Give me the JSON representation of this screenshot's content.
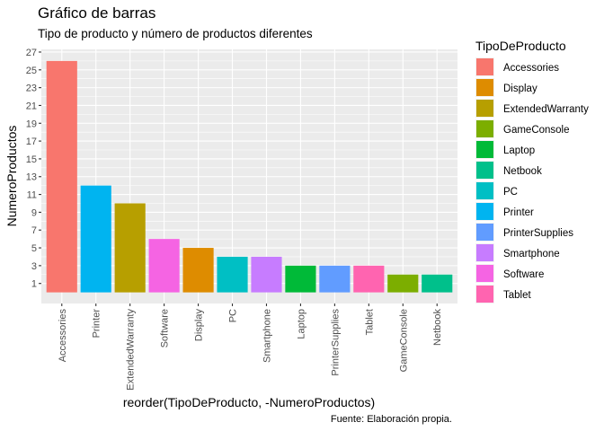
{
  "chart_data": {
    "type": "bar",
    "title": "Gráfico de barras",
    "subtitle": "Tipo de producto y número de productos diferentes",
    "xlabel": "reorder(TipoDeProducto, -NumeroProductos)",
    "ylabel": "NumeroProductos",
    "caption": "Fuente: Elaboración propia.",
    "ylim": [
      -1.25,
      27.3
    ],
    "yticks": [
      1,
      3,
      5,
      7,
      9,
      11,
      13,
      15,
      17,
      19,
      21,
      23,
      25,
      27
    ],
    "grid": true,
    "legend_position": "right",
    "legend_title": "TipoDeProducto",
    "legend": [
      {
        "name": "Accessories",
        "color": "#F8766D"
      },
      {
        "name": "Display",
        "color": "#DE8C00"
      },
      {
        "name": "ExtendedWarranty",
        "color": "#B79F00"
      },
      {
        "name": "GameConsole",
        "color": "#7CAE00"
      },
      {
        "name": "Laptop",
        "color": "#00BA38"
      },
      {
        "name": "Netbook",
        "color": "#00C08B"
      },
      {
        "name": "PC",
        "color": "#00BFC4"
      },
      {
        "name": "Printer",
        "color": "#00B4F0"
      },
      {
        "name": "PrinterSupplies",
        "color": "#619CFF"
      },
      {
        "name": "Smartphone",
        "color": "#C77CFF"
      },
      {
        "name": "Software",
        "color": "#F564E3"
      },
      {
        "name": "Tablet",
        "color": "#FF64B0"
      }
    ],
    "categories": [
      "Accessories",
      "Printer",
      "ExtendedWarranty",
      "Software",
      "Display",
      "PC",
      "Smartphone",
      "Laptop",
      "PrinterSupplies",
      "Tablet",
      "GameConsole",
      "Netbook"
    ],
    "values": [
      26,
      12,
      10,
      6,
      5,
      4,
      4,
      3,
      3,
      3,
      2,
      2
    ]
  }
}
